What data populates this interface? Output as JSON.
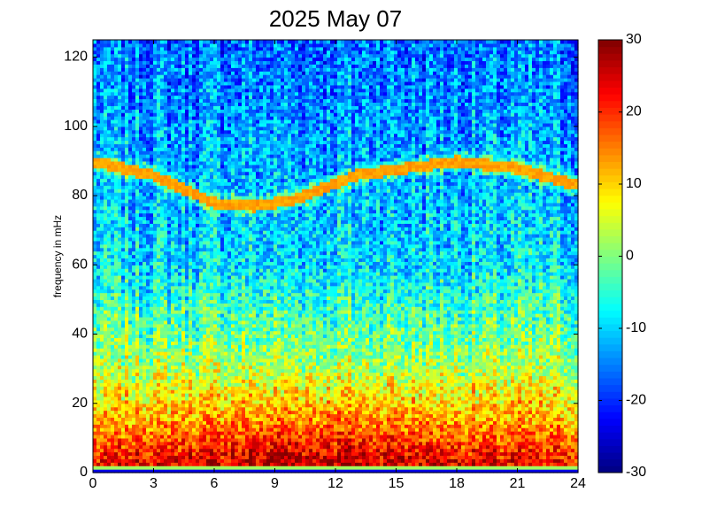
{
  "chart_data": {
    "type": "heatmap",
    "title": "2025 May 07",
    "xlabel": "",
    "ylabel": "frequency in mHz",
    "xlim": [
      0,
      24
    ],
    "ylim": [
      0,
      125
    ],
    "x_ticks": [
      0,
      3,
      6,
      9,
      12,
      15,
      18,
      21,
      24
    ],
    "y_ticks": [
      0,
      20,
      40,
      60,
      80,
      100,
      120
    ],
    "colorbar": {
      "range": [
        -30,
        30
      ],
      "ticks": [
        -30,
        -20,
        -10,
        0,
        10,
        20,
        30
      ],
      "colormap": "jet"
    },
    "features": {
      "bright_band_frequency_by_hour": [
        {
          "hour": 0,
          "mHz": 90
        },
        {
          "hour": 3,
          "mHz": 86
        },
        {
          "hour": 6,
          "mHz": 78
        },
        {
          "hour": 8,
          "mHz": 77
        },
        {
          "hour": 10,
          "mHz": 79
        },
        {
          "hour": 13,
          "mHz": 86
        },
        {
          "hour": 18,
          "mHz": 90
        },
        {
          "hour": 21,
          "mHz": 88
        },
        {
          "hour": 24,
          "mHz": 83
        }
      ],
      "low_frequency_level_by_mHz": [
        {
          "mHz": 0,
          "value": 24
        },
        {
          "mHz": 5,
          "value": 20
        },
        {
          "mHz": 15,
          "value": 12
        },
        {
          "mHz": 30,
          "value": 3
        },
        {
          "mHz": 60,
          "value": -9
        },
        {
          "mHz": 125,
          "value": -16
        }
      ]
    }
  }
}
